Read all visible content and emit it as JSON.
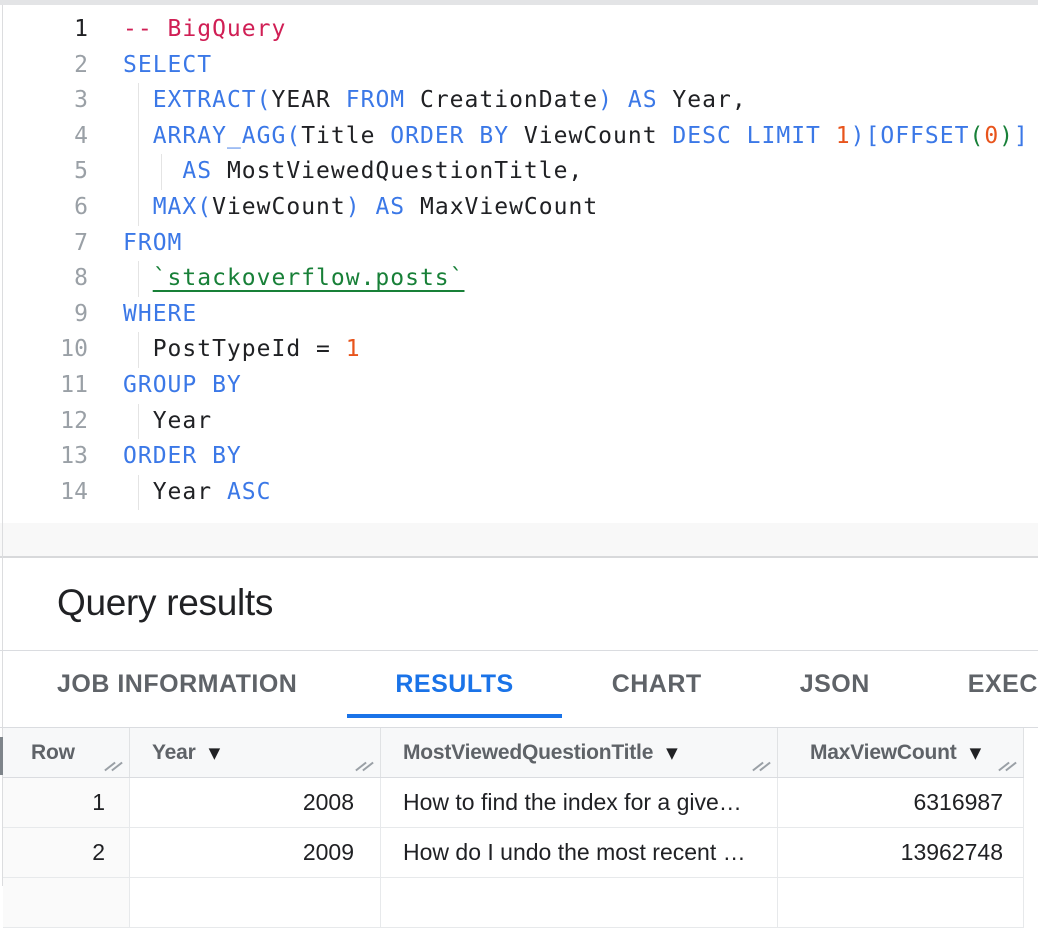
{
  "colors": {
    "keyword": "#3B78E7",
    "comment": "#D01F55",
    "number": "#E8541C",
    "table_link": "#188038",
    "active_tab": "#1A73E8"
  },
  "code_editor": {
    "lines": [
      {
        "number": "1",
        "active": true,
        "tokens": [
          {
            "text": "-- BigQuery",
            "type": "comment"
          }
        ]
      },
      {
        "number": "2",
        "tokens": [
          {
            "text": "SELECT",
            "type": "keyword"
          }
        ]
      },
      {
        "number": "3",
        "tokens": [
          {
            "text": "  ",
            "type": "plain"
          },
          {
            "text": "EXTRACT",
            "type": "keyword"
          },
          {
            "text": "(",
            "type": "keyword"
          },
          {
            "text": "YEAR",
            "type": "plain"
          },
          {
            "text": " ",
            "type": "plain"
          },
          {
            "text": "FROM",
            "type": "keyword"
          },
          {
            "text": " CreationDate",
            "type": "plain"
          },
          {
            "text": ")",
            "type": "keyword"
          },
          {
            "text": " ",
            "type": "plain"
          },
          {
            "text": "AS",
            "type": "keyword"
          },
          {
            "text": " Year,",
            "type": "plain"
          }
        ]
      },
      {
        "number": "4",
        "tokens": [
          {
            "text": "  ",
            "type": "plain"
          },
          {
            "text": "ARRAY_AGG",
            "type": "keyword"
          },
          {
            "text": "(",
            "type": "keyword"
          },
          {
            "text": "Title",
            "type": "plain"
          },
          {
            "text": " ",
            "type": "plain"
          },
          {
            "text": "ORDER BY",
            "type": "keyword"
          },
          {
            "text": " ViewCount",
            "type": "plain"
          },
          {
            "text": " ",
            "type": "plain"
          },
          {
            "text": "DESC",
            "type": "keyword"
          },
          {
            "text": " ",
            "type": "plain"
          },
          {
            "text": "LIMIT",
            "type": "keyword"
          },
          {
            "text": " ",
            "type": "plain"
          },
          {
            "text": "1",
            "type": "number"
          },
          {
            "text": ")",
            "type": "keyword"
          },
          {
            "text": "[",
            "type": "keyword"
          },
          {
            "text": "OFFSET",
            "type": "keyword"
          },
          {
            "text": "(",
            "type": "bracket2"
          },
          {
            "text": "0",
            "type": "number"
          },
          {
            "text": ")",
            "type": "bracket2"
          },
          {
            "text": "]",
            "type": "keyword"
          }
        ]
      },
      {
        "number": "5",
        "tokens": [
          {
            "text": "    ",
            "type": "plain"
          },
          {
            "text": "AS",
            "type": "keyword"
          },
          {
            "text": " MostViewedQuestionTitle,",
            "type": "plain"
          }
        ]
      },
      {
        "number": "6",
        "tokens": [
          {
            "text": "  ",
            "type": "plain"
          },
          {
            "text": "MAX",
            "type": "keyword"
          },
          {
            "text": "(",
            "type": "keyword"
          },
          {
            "text": "ViewCount",
            "type": "plain"
          },
          {
            "text": ")",
            "type": "keyword"
          },
          {
            "text": " ",
            "type": "plain"
          },
          {
            "text": "AS",
            "type": "keyword"
          },
          {
            "text": " MaxViewCount",
            "type": "plain"
          }
        ]
      },
      {
        "number": "7",
        "tokens": [
          {
            "text": "FROM",
            "type": "keyword"
          }
        ]
      },
      {
        "number": "8",
        "tokens": [
          {
            "text": "  ",
            "type": "plain"
          },
          {
            "text": "`stackoverflow.posts`",
            "type": "table-link"
          }
        ]
      },
      {
        "number": "9",
        "tokens": [
          {
            "text": "WHERE",
            "type": "keyword"
          }
        ]
      },
      {
        "number": "10",
        "tokens": [
          {
            "text": "  PostTypeId ",
            "type": "plain"
          },
          {
            "text": "=",
            "type": "plain"
          },
          {
            "text": " ",
            "type": "plain"
          },
          {
            "text": "1",
            "type": "number"
          }
        ]
      },
      {
        "number": "11",
        "tokens": [
          {
            "text": "GROUP BY",
            "type": "keyword"
          }
        ]
      },
      {
        "number": "12",
        "tokens": [
          {
            "text": "  Year",
            "type": "plain"
          }
        ]
      },
      {
        "number": "13",
        "tokens": [
          {
            "text": "ORDER BY",
            "type": "keyword"
          }
        ]
      },
      {
        "number": "14",
        "tokens": [
          {
            "text": "  Year ",
            "type": "plain"
          },
          {
            "text": "ASC",
            "type": "keyword"
          }
        ]
      }
    ]
  },
  "results_panel": {
    "title": "Query results",
    "tabs": [
      {
        "label": "JOB INFORMATION",
        "active": false
      },
      {
        "label": "RESULTS",
        "active": true
      },
      {
        "label": "CHART",
        "active": false
      },
      {
        "label": "JSON",
        "active": false
      },
      {
        "label": "EXECUTION DETAILS",
        "active": false
      }
    ],
    "table": {
      "columns": [
        {
          "label": "Row",
          "sortable": false
        },
        {
          "label": "Year",
          "sortable": true
        },
        {
          "label": "MostViewedQuestionTitle",
          "sortable": true
        },
        {
          "label": "MaxViewCount",
          "sortable": true
        }
      ],
      "sort_icon": "▼",
      "rows": [
        {
          "cells": [
            "1",
            "2008",
            "How to find the index for a give…",
            "6316987"
          ]
        },
        {
          "cells": [
            "2",
            "2009",
            "How do I undo the most recent …",
            "13962748"
          ]
        }
      ]
    }
  }
}
